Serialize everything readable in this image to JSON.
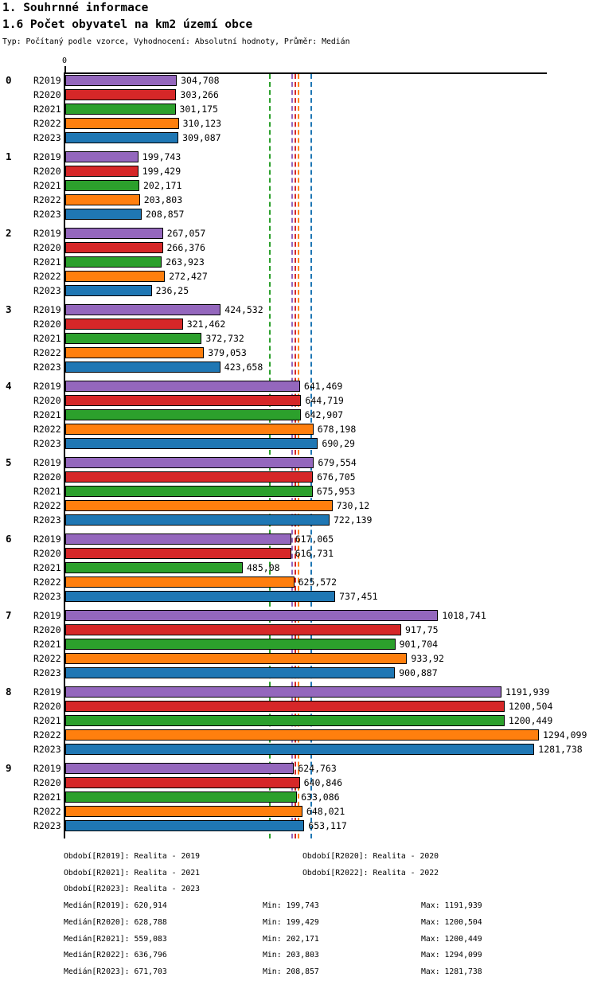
{
  "header": {
    "section_title": "1. Souhrnné informace",
    "chart_title": "1.6 Počet obyvatel na km2 území obce",
    "meta": "Typ: Počítaný podle vzorce, Vyhodnocení: Absolutní hodnoty, Průměr: Medián"
  },
  "chart_data": {
    "type": "bar",
    "orientation": "horizontal",
    "title": "1.6 Počet obyvatel na km2 území obce",
    "xlabel": "",
    "ylabel": "",
    "axis": {
      "zero_label": "0",
      "xmin": 0,
      "xmax": 1315.8,
      "grid": false
    },
    "legend_position": "none",
    "series": [
      {
        "name": "R2019",
        "color": "#9467bd",
        "median": 620.914
      },
      {
        "name": "R2020",
        "color": "#d62728",
        "median": 628.788
      },
      {
        "name": "R2021",
        "color": "#2ca02c",
        "median": 559.083
      },
      {
        "name": "R2022",
        "color": "#ff7f0e",
        "median": 636.796
      },
      {
        "name": "R2023",
        "color": "#1f77b4",
        "median": 671.703
      }
    ],
    "median_line_style": "dashed",
    "groups": [
      {
        "label": "0",
        "values": [
          304.708,
          303.266,
          301.175,
          310.123,
          309.087
        ],
        "labels": [
          "304,708",
          "303,266",
          "301,175",
          "310,123",
          "309,087"
        ]
      },
      {
        "label": "1",
        "values": [
          199.743,
          199.429,
          202.171,
          203.803,
          208.857
        ],
        "labels": [
          "199,743",
          "199,429",
          "202,171",
          "203,803",
          "208,857"
        ]
      },
      {
        "label": "2",
        "values": [
          267.057,
          266.376,
          263.923,
          272.427,
          236.25
        ],
        "labels": [
          "267,057",
          "266,376",
          "263,923",
          "272,427",
          "236,25"
        ]
      },
      {
        "label": "3",
        "values": [
          424.532,
          321.462,
          372.732,
          379.053,
          423.658
        ],
        "labels": [
          "424,532",
          "321,462",
          "372,732",
          "379,053",
          "423,658"
        ]
      },
      {
        "label": "4",
        "values": [
          641.469,
          644.719,
          642.907,
          678.198,
          690.29
        ],
        "labels": [
          "641,469",
          "644,719",
          "642,907",
          "678,198",
          "690,29"
        ]
      },
      {
        "label": "5",
        "values": [
          679.554,
          676.705,
          675.953,
          730.12,
          722.139
        ],
        "labels": [
          "679,554",
          "676,705",
          "675,953",
          "730,12",
          "722,139"
        ]
      },
      {
        "label": "6",
        "values": [
          617.065,
          616.731,
          485.08,
          625.572,
          737.451
        ],
        "labels": [
          "617,065",
          "616,731",
          "485,08",
          "625,572",
          "737,451"
        ]
      },
      {
        "label": "7",
        "values": [
          1018.741,
          917.75,
          901.704,
          933.92,
          900.887
        ],
        "labels": [
          "1018,741",
          "917,75",
          "901,704",
          "933,92",
          "900,887"
        ]
      },
      {
        "label": "8",
        "values": [
          1191.939,
          1200.504,
          1200.449,
          1294.099,
          1281.738
        ],
        "labels": [
          "1191,939",
          "1200,504",
          "1200,449",
          "1294,099",
          "1281,738"
        ]
      },
      {
        "label": "9",
        "values": [
          624.763,
          640.846,
          633.086,
          648.021,
          653.117
        ],
        "labels": [
          "624,763",
          "640,846",
          "633,086",
          "648,021",
          "653,117"
        ]
      }
    ]
  },
  "footer": {
    "period_rows": [
      [
        "Období[R2019]: Realita - 2019",
        "Období[R2020]: Realita - 2020"
      ],
      [
        "Období[R2021]: Realita - 2021",
        "Období[R2022]: Realita - 2022"
      ],
      [
        "Období[R2023]: Realita - 2023"
      ]
    ],
    "stat_rows": [
      {
        "median": "Medián[R2019]: 620,914",
        "min": "Min: 199,743",
        "max": "Max: 1191,939"
      },
      {
        "median": "Medián[R2020]: 628,788",
        "min": "Min: 199,429",
        "max": "Max: 1200,504"
      },
      {
        "median": "Medián[R2021]: 559,083",
        "min": "Min: 202,171",
        "max": "Max: 1200,449"
      },
      {
        "median": "Medián[R2022]: 636,796",
        "min": "Min: 203,803",
        "max": "Max: 1294,099"
      },
      {
        "median": "Medián[R2023]: 671,703",
        "min": "Min: 208,857",
        "max": "Max: 1281,738"
      }
    ]
  }
}
